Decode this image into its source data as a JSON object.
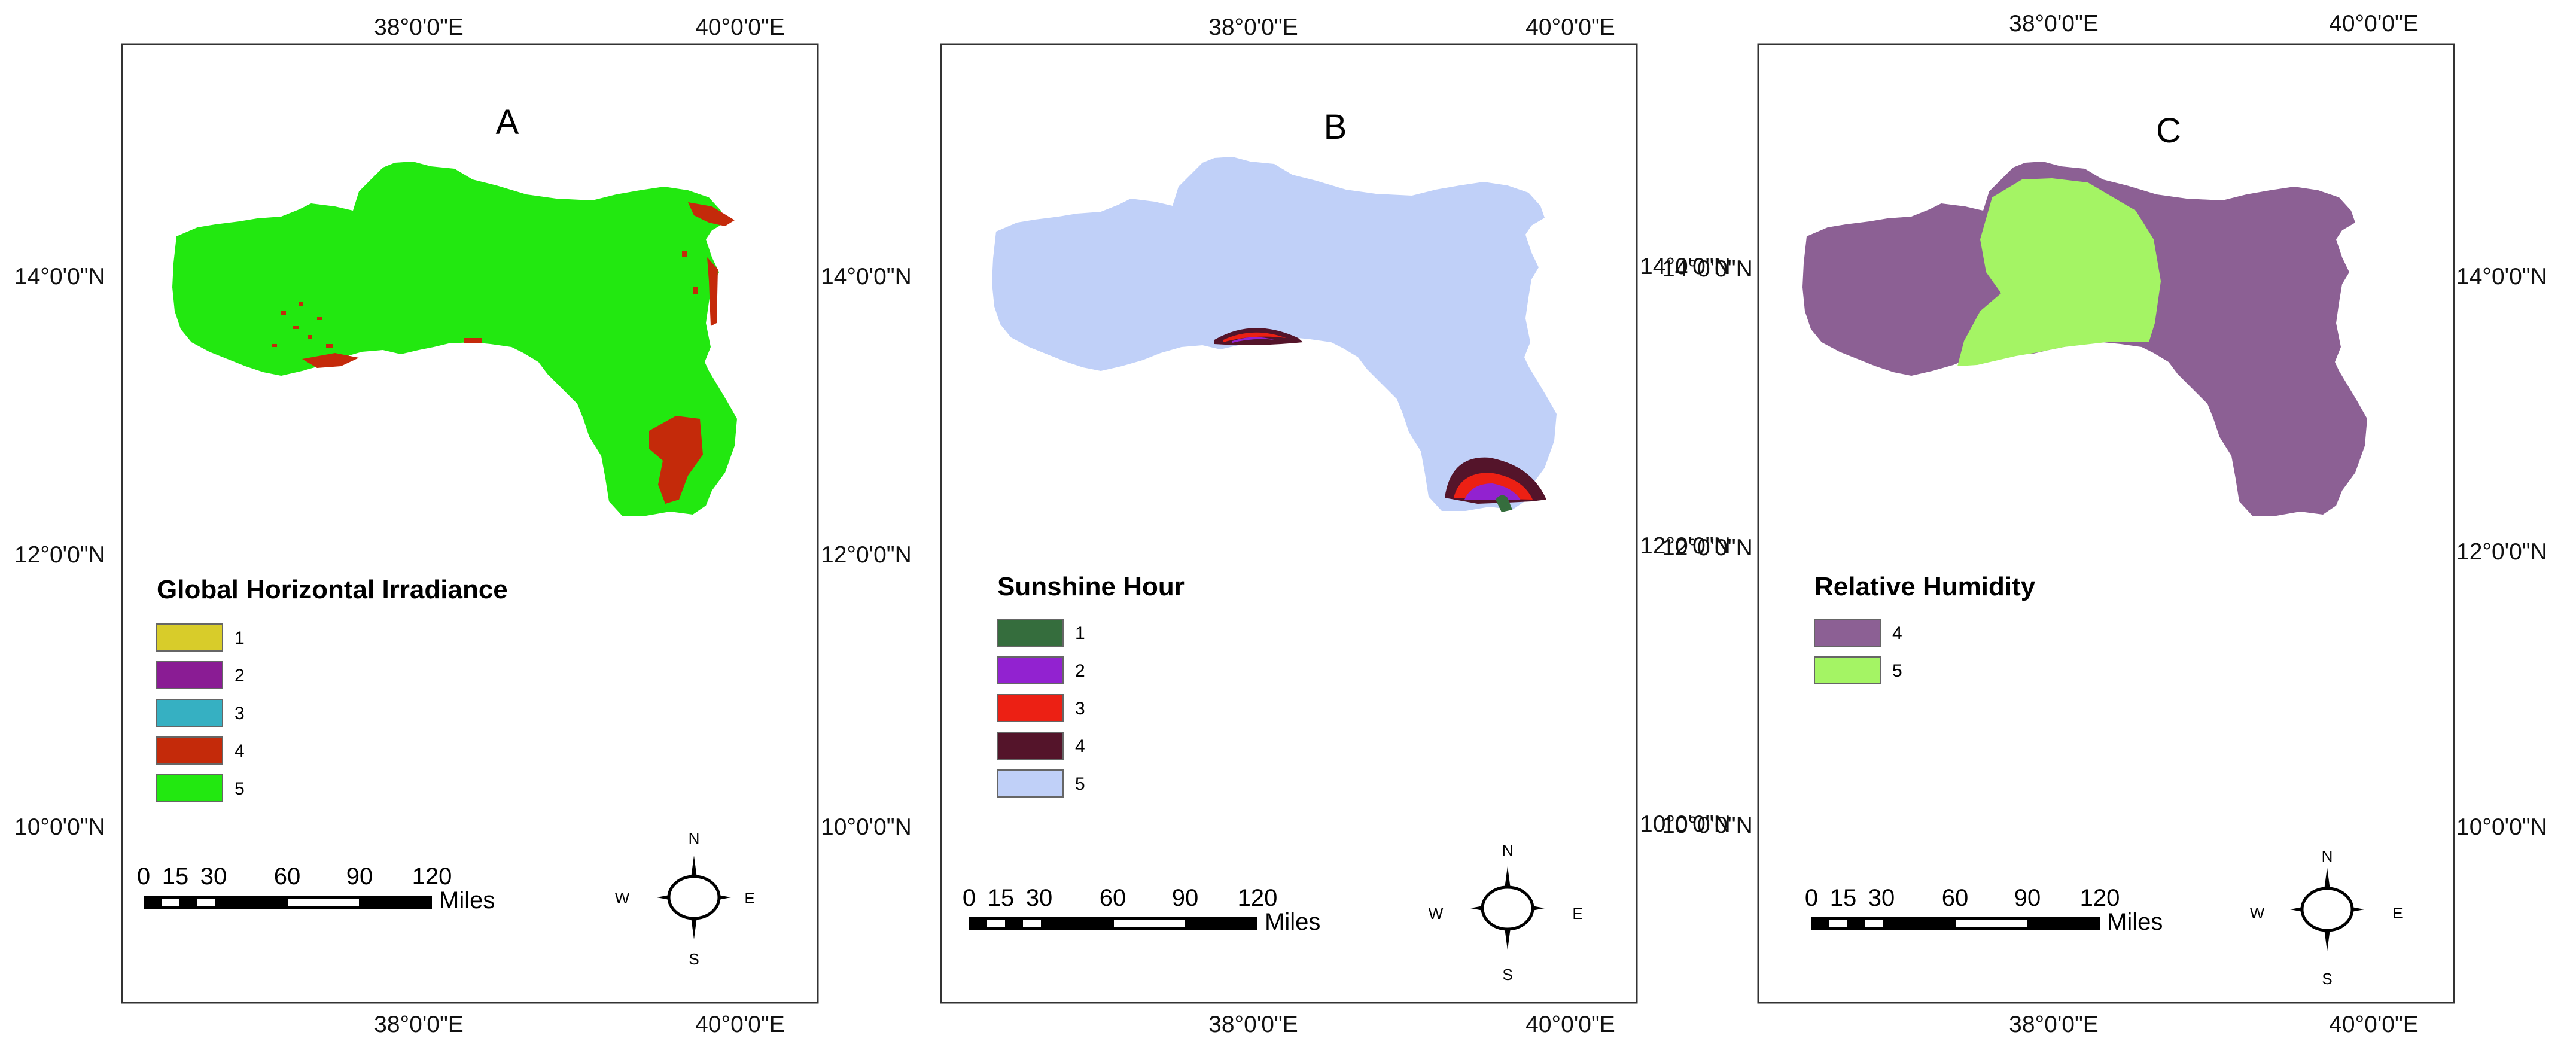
{
  "coords": {
    "lon_38": "38°0'0\"E",
    "lon_40": "40°0'0\"E",
    "lat_14": "14°0'0\"N",
    "lat_12": "12°0'0\"N",
    "lat_10": "10°0'0\"N"
  },
  "panels": [
    {
      "letter": "A",
      "legend_title": "Global Horizontal Irradiance",
      "legend": [
        {
          "label": "1",
          "color": "#d8cc2a"
        },
        {
          "label": "2",
          "color": "#8a1c94"
        },
        {
          "label": "3",
          "color": "#36b0c2"
        },
        {
          "label": "4",
          "color": "#c42a0a"
        },
        {
          "label": "5",
          "color": "#22e810"
        }
      ]
    },
    {
      "letter": "B",
      "legend_title": "Sunshine Hour",
      "legend": [
        {
          "label": "1",
          "color": "#356d3d"
        },
        {
          "label": "2",
          "color": "#9222d0"
        },
        {
          "label": "3",
          "color": "#ec2014"
        },
        {
          "label": "4",
          "color": "#54142a"
        },
        {
          "label": "5",
          "color": "#c0d0f8"
        }
      ]
    },
    {
      "letter": "C",
      "legend_title": "Relative Humidity",
      "legend": [
        {
          "label": "4",
          "color": "#8c6094"
        },
        {
          "label": "5",
          "color": "#a4f464"
        }
      ]
    }
  ],
  "scale_bar": {
    "ticks": [
      "0",
      "15",
      "30",
      "60",
      "90",
      "120"
    ],
    "unit": "Miles"
  },
  "compass": {
    "n": "N",
    "s": "S",
    "e": "E",
    "w": "W"
  }
}
